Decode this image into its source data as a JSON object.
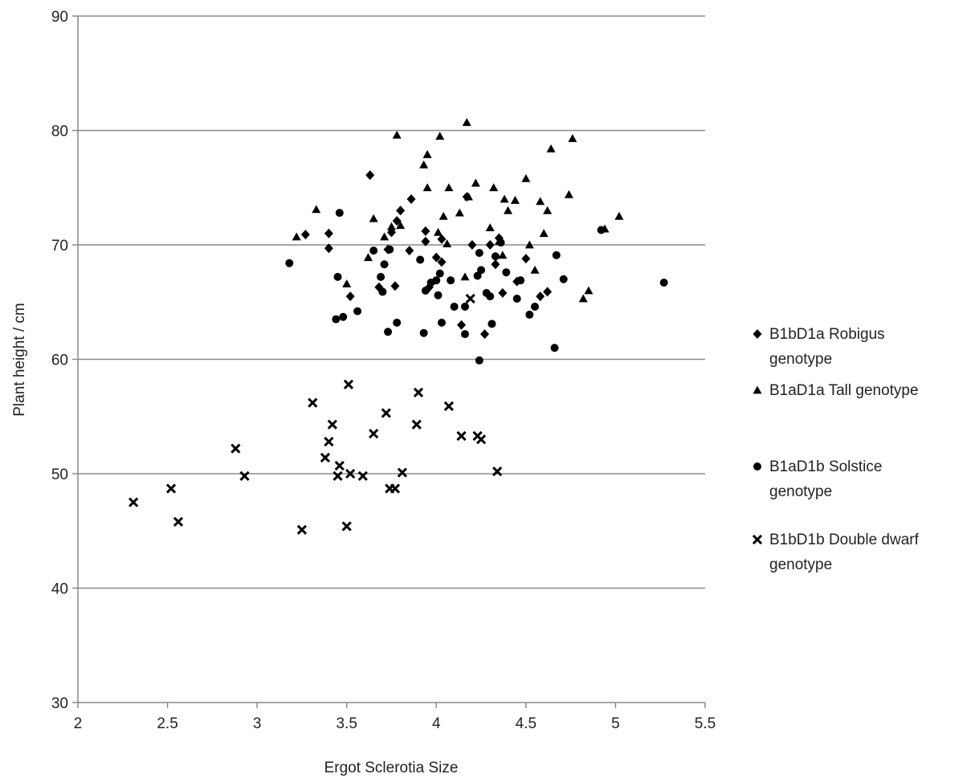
{
  "chart_data": {
    "type": "scatter",
    "xlabel": "Ergot Sclerotia Size",
    "ylabel": "Plant height  / cm",
    "xlim": [
      2,
      5.5
    ],
    "ylim": [
      30,
      90
    ],
    "x_ticks": [
      "2",
      "2.5",
      "3",
      "3.5",
      "4",
      "4.5",
      "5",
      "5.5"
    ],
    "y_ticks": [
      "30",
      "40",
      "50",
      "60",
      "70",
      "80",
      "90"
    ],
    "grid": "horizontal",
    "legend_position": "right",
    "series": [
      {
        "name": "B1bD1a Robigus genotype",
        "marker": "diamond",
        "color": "#000000",
        "legend_lines": [
          "B1bD1a Robigus",
          "genotype"
        ],
        "points": [
          [
            3.27,
            70.9
          ],
          [
            3.4,
            71.0
          ],
          [
            3.4,
            69.7
          ],
          [
            3.52,
            65.5
          ],
          [
            3.63,
            76.1
          ],
          [
            3.68,
            66.3
          ],
          [
            3.73,
            69.6
          ],
          [
            3.75,
            71.1
          ],
          [
            3.77,
            66.4
          ],
          [
            3.78,
            72.1
          ],
          [
            3.8,
            73.0
          ],
          [
            3.85,
            69.5
          ],
          [
            3.86,
            74.0
          ],
          [
            3.94,
            71.2
          ],
          [
            3.94,
            70.3
          ],
          [
            3.96,
            66.3
          ],
          [
            4.0,
            68.9
          ],
          [
            4.03,
            68.5
          ],
          [
            4.03,
            70.5
          ],
          [
            4.17,
            74.2
          ],
          [
            4.2,
            70.0
          ],
          [
            4.14,
            63.0
          ],
          [
            4.27,
            62.2
          ],
          [
            4.3,
            70.0
          ],
          [
            4.33,
            68.3
          ],
          [
            4.35,
            70.6
          ],
          [
            4.37,
            65.8
          ],
          [
            4.45,
            66.8
          ],
          [
            4.5,
            68.8
          ],
          [
            4.58,
            65.5
          ],
          [
            4.62,
            65.9
          ]
        ]
      },
      {
        "name": "B1aD1a Tall genotype",
        "marker": "triangle",
        "color": "#000000",
        "legend_lines": [
          "B1aD1a Tall genotype"
        ],
        "points": [
          [
            3.22,
            70.7
          ],
          [
            3.33,
            73.1
          ],
          [
            3.5,
            66.6
          ],
          [
            3.62,
            68.9
          ],
          [
            3.65,
            72.3
          ],
          [
            3.71,
            70.7
          ],
          [
            3.75,
            71.6
          ],
          [
            3.78,
            79.6
          ],
          [
            3.8,
            71.7
          ],
          [
            3.93,
            77.0
          ],
          [
            3.95,
            77.9
          ],
          [
            3.95,
            75.0
          ],
          [
            4.01,
            71.1
          ],
          [
            4.02,
            79.5
          ],
          [
            4.04,
            72.5
          ],
          [
            4.06,
            70.1
          ],
          [
            4.07,
            75.0
          ],
          [
            4.13,
            72.8
          ],
          [
            4.16,
            67.2
          ],
          [
            4.17,
            80.7
          ],
          [
            4.18,
            74.2
          ],
          [
            4.22,
            75.4
          ],
          [
            4.3,
            71.5
          ],
          [
            4.32,
            75.0
          ],
          [
            4.35,
            70.3
          ],
          [
            4.37,
            69.1
          ],
          [
            4.38,
            74.0
          ],
          [
            4.4,
            73.0
          ],
          [
            4.44,
            73.9
          ],
          [
            4.5,
            75.8
          ],
          [
            4.52,
            70.0
          ],
          [
            4.55,
            67.8
          ],
          [
            4.58,
            73.8
          ],
          [
            4.6,
            71.0
          ],
          [
            4.62,
            73.0
          ],
          [
            4.64,
            78.4
          ],
          [
            4.74,
            74.4
          ],
          [
            4.76,
            79.3
          ],
          [
            4.82,
            65.3
          ],
          [
            4.85,
            66.0
          ],
          [
            4.94,
            71.4
          ],
          [
            5.02,
            72.5
          ]
        ]
      },
      {
        "name": "B1aD1b Solstice genotype",
        "marker": "circle",
        "color": "#000000",
        "legend_lines": [
          "B1aD1b Solstice",
          "genotype"
        ],
        "points": [
          [
            3.18,
            68.4
          ],
          [
            3.44,
            63.5
          ],
          [
            3.45,
            67.2
          ],
          [
            3.46,
            72.8
          ],
          [
            3.48,
            63.7
          ],
          [
            3.56,
            64.2
          ],
          [
            3.65,
            69.5
          ],
          [
            3.69,
            67.2
          ],
          [
            3.7,
            65.9
          ],
          [
            3.71,
            68.3
          ],
          [
            3.73,
            62.4
          ],
          [
            3.74,
            69.6
          ],
          [
            3.78,
            63.2
          ],
          [
            3.91,
            68.7
          ],
          [
            3.93,
            62.3
          ],
          [
            3.94,
            66.0
          ],
          [
            3.97,
            66.7
          ],
          [
            4.0,
            66.9
          ],
          [
            4.01,
            65.6
          ],
          [
            4.02,
            67.5
          ],
          [
            4.03,
            63.2
          ],
          [
            4.08,
            66.9
          ],
          [
            4.1,
            64.6
          ],
          [
            4.16,
            64.6
          ],
          [
            4.16,
            62.2
          ],
          [
            4.23,
            67.3
          ],
          [
            4.24,
            69.3
          ],
          [
            4.24,
            59.9
          ],
          [
            4.25,
            67.8
          ],
          [
            4.28,
            65.8
          ],
          [
            4.3,
            65.5
          ],
          [
            4.31,
            63.1
          ],
          [
            4.33,
            69.0
          ],
          [
            4.36,
            70.2
          ],
          [
            4.39,
            67.6
          ],
          [
            4.45,
            65.3
          ],
          [
            4.47,
            66.9
          ],
          [
            4.52,
            63.9
          ],
          [
            4.55,
            64.6
          ],
          [
            4.66,
            61.0
          ],
          [
            4.67,
            69.1
          ],
          [
            4.71,
            67.0
          ],
          [
            4.92,
            71.3
          ],
          [
            5.27,
            66.7
          ]
        ]
      },
      {
        "name": "B1bD1b Double dwarf genotype",
        "marker": "x",
        "color": "#000000",
        "legend_lines": [
          "B1bD1b Double dwarf",
          "genotype"
        ],
        "points": [
          [
            2.31,
            47.5
          ],
          [
            2.52,
            48.7
          ],
          [
            2.56,
            45.8
          ],
          [
            2.88,
            52.2
          ],
          [
            2.93,
            49.8
          ],
          [
            3.25,
            45.1
          ],
          [
            3.31,
            56.2
          ],
          [
            3.38,
            51.4
          ],
          [
            3.4,
            52.8
          ],
          [
            3.42,
            54.3
          ],
          [
            3.45,
            49.8
          ],
          [
            3.46,
            50.7
          ],
          [
            3.5,
            45.4
          ],
          [
            3.51,
            57.8
          ],
          [
            3.52,
            50.0
          ],
          [
            3.59,
            49.8
          ],
          [
            3.65,
            53.5
          ],
          [
            3.72,
            55.3
          ],
          [
            3.74,
            48.7
          ],
          [
            3.77,
            48.7
          ],
          [
            3.81,
            50.1
          ],
          [
            3.89,
            54.3
          ],
          [
            3.9,
            57.1
          ],
          [
            4.07,
            55.9
          ],
          [
            4.14,
            53.3
          ],
          [
            4.19,
            65.3
          ],
          [
            4.23,
            53.3
          ],
          [
            4.25,
            53.0
          ],
          [
            4.34,
            50.2
          ]
        ]
      }
    ]
  }
}
